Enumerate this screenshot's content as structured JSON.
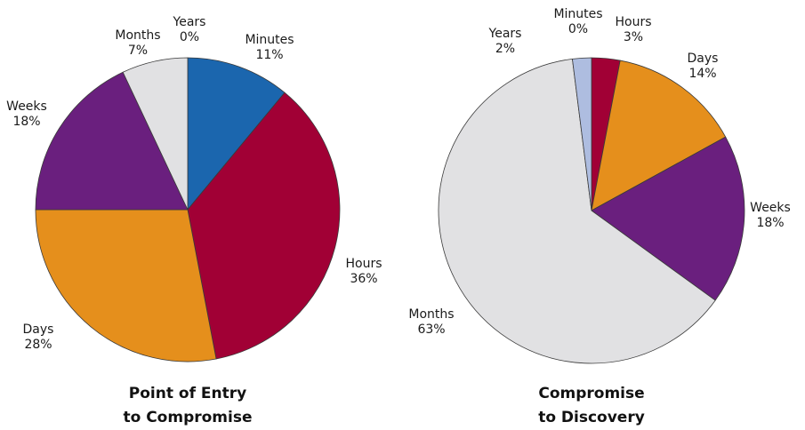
{
  "chart_data": [
    {
      "type": "pie",
      "title_lines": [
        "Point of Entry",
        "to Compromise"
      ],
      "slices": [
        {
          "label": "Minutes",
          "value": 11,
          "display": "11%",
          "color": "#1b66ae"
        },
        {
          "label": "Hours",
          "value": 36,
          "display": "36%",
          "color": "#a10035"
        },
        {
          "label": "Days",
          "value": 28,
          "display": "28%",
          "color": "#e58f1c"
        },
        {
          "label": "Weeks",
          "value": 18,
          "display": "18%",
          "color": "#6a1f7e"
        },
        {
          "label": "Months",
          "value": 7,
          "display": "7%",
          "color": "#e1e1e3"
        },
        {
          "label": "Years",
          "value": 0,
          "display": "0%",
          "color": "#aebde0"
        }
      ]
    },
    {
      "type": "pie",
      "title_lines": [
        "Compromise",
        "to Discovery"
      ],
      "slices": [
        {
          "label": "Minutes",
          "value": 0,
          "display": "0%",
          "color": "#1b66ae"
        },
        {
          "label": "Hours",
          "value": 3,
          "display": "3%",
          "color": "#a10035"
        },
        {
          "label": "Days",
          "value": 14,
          "display": "14%",
          "color": "#e58f1c"
        },
        {
          "label": "Weeks",
          "value": 18,
          "display": "18%",
          "color": "#6a1f7e"
        },
        {
          "label": "Months",
          "value": 63,
          "display": "63%",
          "color": "#e1e1e3"
        },
        {
          "label": "Years",
          "value": 2,
          "display": "2%",
          "color": "#aebde0"
        }
      ]
    }
  ]
}
